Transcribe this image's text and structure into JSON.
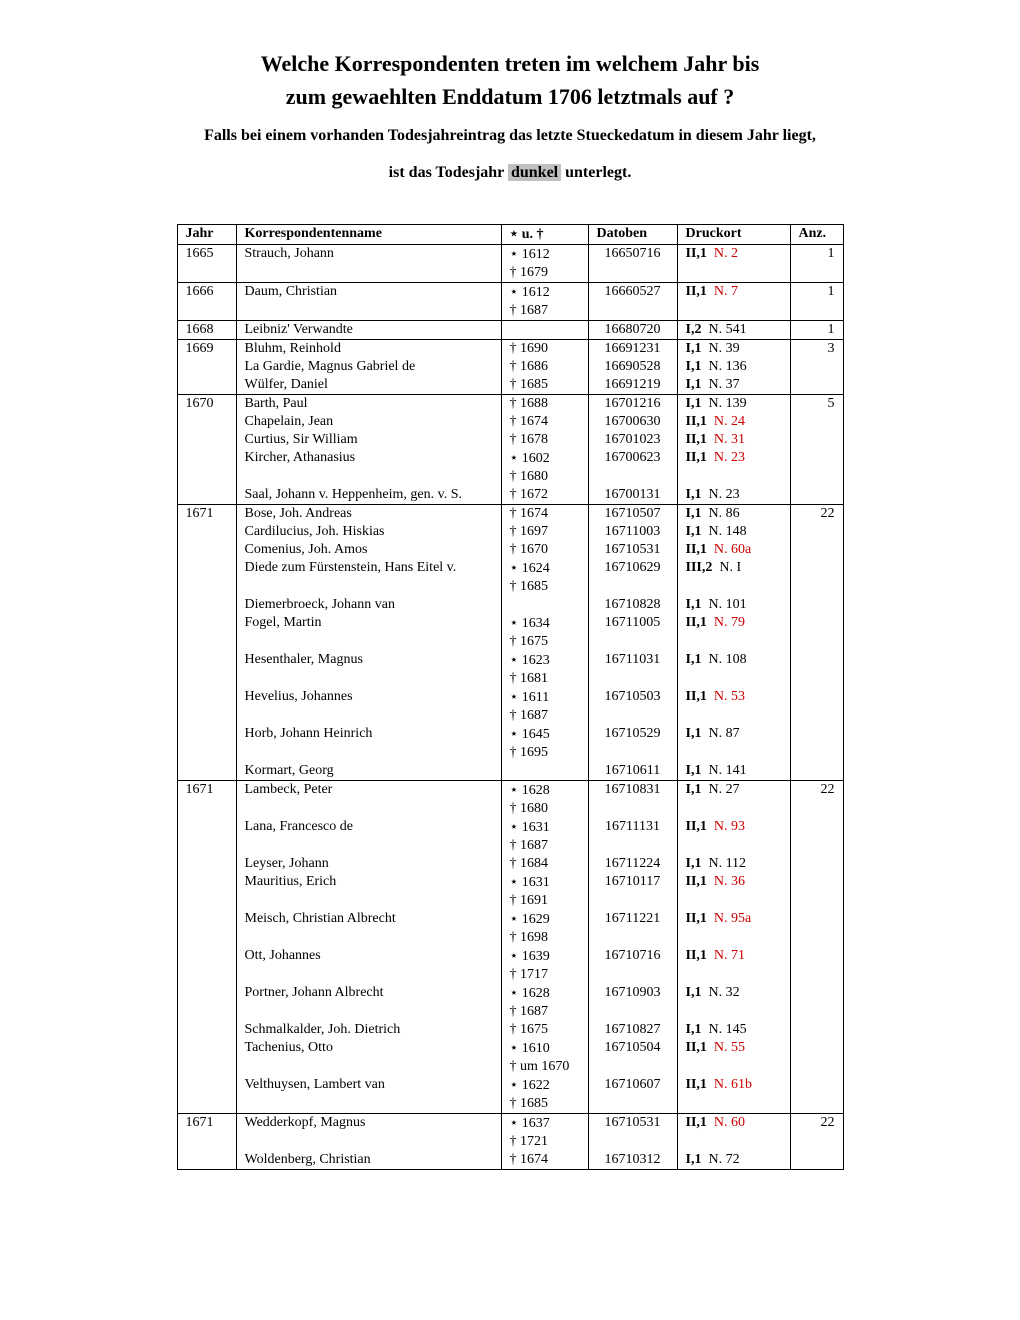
{
  "title_line1": "Welche Korrespondenten treten im welchem Jahr bis",
  "title_line2": "zum gewaehlten Enddatum 1706 letztmals auf ?",
  "subtitle_line1": "Falls bei einem vorhanden Todesjahreintrag das letzte Stueckedatum in diesem Jahr liegt,",
  "subtitle_prefix": "ist das Todesjahr ",
  "subtitle_highlight": "dunkel",
  "subtitle_suffix": " unterlegt.",
  "columns": {
    "jahr": "Jahr",
    "name": "Korrespondentenname",
    "dates": "⋆ u. †",
    "datoben": "Datoben",
    "druck": "Druckort",
    "anz": "Anz."
  },
  "rows": [
    {
      "sep": true,
      "jahr": "1665",
      "name": "Strauch, Johann",
      "d1": "⋆ 1612",
      "d2": "† 1679",
      "dat": "16650716",
      "vol": "II,1",
      "num": "N. 2",
      "red": true,
      "anz": "1"
    },
    {
      "sep": true,
      "jahr": "1666",
      "name": "Daum, Christian",
      "d1": "⋆ 1612",
      "d2": "† 1687",
      "dat": "16660527",
      "vol": "II,1",
      "num": "N. 7",
      "red": true,
      "anz": "1"
    },
    {
      "sep": true,
      "jahr": "1668",
      "name": "Leibniz' Verwandte",
      "d1": "",
      "d2": "",
      "dat": "16680720",
      "vol": "I,2",
      "num": "N. 541",
      "red": false,
      "anz": "1"
    },
    {
      "sep": true,
      "jahr": "1669",
      "name": "Bluhm, Reinhold",
      "d1": "† 1690",
      "d2": "",
      "dat": "16691231",
      "vol": "I,1",
      "num": "N. 39",
      "red": false,
      "anz": "3"
    },
    {
      "sep": false,
      "jahr": "",
      "name": "La Gardie, Magnus Gabriel de",
      "d1": "† 1686",
      "d2": "",
      "dat": "16690528",
      "vol": "I,1",
      "num": "N. 136",
      "red": false,
      "anz": ""
    },
    {
      "sep": false,
      "jahr": "",
      "name": "Wülfer, Daniel",
      "d1": "† 1685",
      "d2": "",
      "dat": "16691219",
      "vol": "I,1",
      "num": "N. 37",
      "red": false,
      "anz": ""
    },
    {
      "sep": true,
      "jahr": "1670",
      "name": "Barth, Paul",
      "d1": "† 1688",
      "d2": "",
      "dat": "16701216",
      "vol": "I,1",
      "num": "N. 139",
      "red": false,
      "anz": "5"
    },
    {
      "sep": false,
      "jahr": "",
      "name": "Chapelain, Jean",
      "d1": "† 1674",
      "d2": "",
      "dat": "16700630",
      "vol": "II,1",
      "num": "N. 24",
      "red": true,
      "anz": ""
    },
    {
      "sep": false,
      "jahr": "",
      "name": "Curtius, Sir William",
      "d1": "† 1678",
      "d2": "",
      "dat": "16701023",
      "vol": "II,1",
      "num": "N. 31",
      "red": true,
      "anz": ""
    },
    {
      "sep": false,
      "jahr": "",
      "name": "Kircher, Athanasius",
      "d1": "⋆ 1602",
      "d2": "† 1680",
      "dat": "16700623",
      "vol": "II,1",
      "num": "N. 23",
      "red": true,
      "anz": ""
    },
    {
      "sep": false,
      "jahr": "",
      "name": "Saal, Johann v. Heppenheim, gen. v. S.",
      "d1": "† 1672",
      "d2": "",
      "dat": "16700131",
      "vol": "I,1",
      "num": "N. 23",
      "red": false,
      "anz": ""
    },
    {
      "sep": true,
      "jahr": "1671",
      "name": "Bose, Joh. Andreas",
      "d1": "† 1674",
      "d2": "",
      "dat": "16710507",
      "vol": "I,1",
      "num": "N. 86",
      "red": false,
      "anz": "22"
    },
    {
      "sep": false,
      "jahr": "",
      "name": "Cardilucius, Joh. Hiskias",
      "d1": "† 1697",
      "d2": "",
      "dat": "16711003",
      "vol": "I,1",
      "num": "N. 148",
      "red": false,
      "anz": ""
    },
    {
      "sep": false,
      "jahr": "",
      "name": "Comenius, Joh. Amos",
      "d1": "† 1670",
      "d2": "",
      "dat": "16710531",
      "vol": "II,1",
      "num": "N. 60a",
      "red": true,
      "anz": ""
    },
    {
      "sep": false,
      "jahr": "",
      "name": "Diede zum Fürstenstein, Hans Eitel v.",
      "d1": "⋆ 1624",
      "d2": "† 1685",
      "dat": "16710629",
      "vol": "III,2",
      "num": "N. I",
      "red": false,
      "anz": ""
    },
    {
      "sep": false,
      "jahr": "",
      "name": "Diemerbroeck, Johann van",
      "d1": "",
      "d2": "",
      "dat": "16710828",
      "vol": "I,1",
      "num": "N. 101",
      "red": false,
      "anz": ""
    },
    {
      "sep": false,
      "jahr": "",
      "name": "Fogel, Martin",
      "d1": "⋆ 1634",
      "d2": "† 1675",
      "dat": "16711005",
      "vol": "II,1",
      "num": "N. 79",
      "red": true,
      "anz": ""
    },
    {
      "sep": false,
      "jahr": "",
      "name": "Hesenthaler, Magnus",
      "d1": "⋆ 1623",
      "d2": "† 1681",
      "dat": "16711031",
      "vol": "I,1",
      "num": "N. 108",
      "red": false,
      "anz": ""
    },
    {
      "sep": false,
      "jahr": "",
      "name": "Hevelius, Johannes",
      "d1": "⋆ 1611",
      "d2": "† 1687",
      "dat": "16710503",
      "vol": "II,1",
      "num": "N. 53",
      "red": true,
      "anz": ""
    },
    {
      "sep": false,
      "jahr": "",
      "name": "Horb, Johann Heinrich",
      "d1": "⋆ 1645",
      "d2": "† 1695",
      "dat": "16710529",
      "vol": "I,1",
      "num": "N. 87",
      "red": false,
      "anz": ""
    },
    {
      "sep": false,
      "jahr": "",
      "name": "Kormart, Georg",
      "d1": "",
      "d2": "",
      "dat": "16710611",
      "vol": "I,1",
      "num": "N. 141",
      "red": false,
      "anz": ""
    },
    {
      "sep": true,
      "jahr": "1671",
      "name": "Lambeck, Peter",
      "d1": "⋆ 1628",
      "d2": "† 1680",
      "dat": "16710831",
      "vol": "I,1",
      "num": "N. 27",
      "red": false,
      "anz": "22"
    },
    {
      "sep": false,
      "jahr": "",
      "name": "Lana, Francesco de",
      "d1": "⋆ 1631",
      "d2": "† 1687",
      "dat": "16711131",
      "vol": "II,1",
      "num": "N. 93",
      "red": true,
      "anz": ""
    },
    {
      "sep": false,
      "jahr": "",
      "name": "Leyser, Johann",
      "d1": "† 1684",
      "d2": "",
      "dat": "16711224",
      "vol": "I,1",
      "num": "N. 112",
      "red": false,
      "anz": ""
    },
    {
      "sep": false,
      "jahr": "",
      "name": "Mauritius, Erich",
      "d1": "⋆ 1631",
      "d2": "† 1691",
      "dat": "16710117",
      "vol": "II,1",
      "num": "N. 36",
      "red": true,
      "anz": ""
    },
    {
      "sep": false,
      "jahr": "",
      "name": "Meisch, Christian Albrecht",
      "d1": "⋆ 1629",
      "d2": "† 1698",
      "dat": "16711221",
      "vol": "II,1",
      "num": "N. 95a",
      "red": true,
      "anz": ""
    },
    {
      "sep": false,
      "jahr": "",
      "name": "Ott, Johannes",
      "d1": "⋆ 1639",
      "d2": "† 1717",
      "dat": "16710716",
      "vol": "II,1",
      "num": "N. 71",
      "red": true,
      "anz": ""
    },
    {
      "sep": false,
      "jahr": "",
      "name": "Portner, Johann Albrecht",
      "d1": "⋆ 1628",
      "d2": "† 1687",
      "dat": "16710903",
      "vol": "I,1",
      "num": "N. 32",
      "red": false,
      "anz": ""
    },
    {
      "sep": false,
      "jahr": "",
      "name": "Schmalkalder, Joh. Dietrich",
      "d1": "† 1675",
      "d2": "",
      "dat": "16710827",
      "vol": "I,1",
      "num": "N. 145",
      "red": false,
      "anz": ""
    },
    {
      "sep": false,
      "jahr": "",
      "name": "Tachenius, Otto",
      "d1": "⋆ 1610",
      "d2": "† um 1670",
      "dat": "16710504",
      "vol": "II,1",
      "num": "N. 55",
      "red": true,
      "anz": ""
    },
    {
      "sep": false,
      "jahr": "",
      "name": "Velthuysen, Lambert van",
      "d1": "⋆ 1622",
      "d2": "† 1685",
      "dat": "16710607",
      "vol": "II,1",
      "num": "N. 61b",
      "red": true,
      "anz": ""
    },
    {
      "sep": true,
      "jahr": "1671",
      "name": "Wedderkopf, Magnus",
      "d1": "⋆ 1637",
      "d2": "† 1721",
      "dat": "16710531",
      "vol": "II,1",
      "num": "N. 60",
      "red": true,
      "anz": "22"
    },
    {
      "sep": false,
      "last": true,
      "jahr": "",
      "name": "Woldenberg, Christian",
      "d1": "† 1674",
      "d2": "",
      "dat": "16710312",
      "vol": "I,1",
      "num": "N. 72",
      "red": false,
      "anz": ""
    }
  ]
}
